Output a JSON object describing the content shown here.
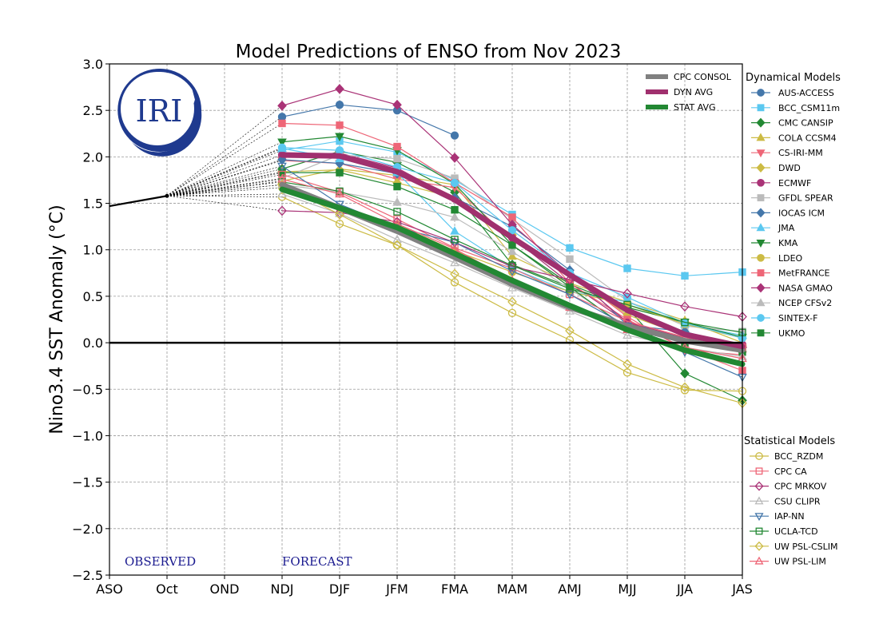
{
  "chart_data": {
    "type": "line",
    "title": "Model Predictions of ENSO from Nov 2023",
    "xlabel": "",
    "ylabel": "Nino3.4 SST Anomaly (°C)",
    "ylim": [
      -2.5,
      3.0
    ],
    "yticks": [
      "−2.5",
      "−2.0",
      "−1.5",
      "−1.0",
      "−0.5",
      "0.0",
      "0.5",
      "1.0",
      "1.5",
      "2.0",
      "2.5",
      "3.0"
    ],
    "categories": [
      "ASO",
      "Oct",
      "OND",
      "NDJ",
      "DJF",
      "JFM",
      "FMA",
      "MAM",
      "AMJ",
      "MJJ",
      "JJA",
      "JAS"
    ],
    "grid": true,
    "annotations": {
      "observed": "OBSERVED",
      "forecast": "FORECAST"
    },
    "logo_text": "IRI",
    "observed": [
      1.47,
      1.58
    ],
    "legend_dyn_title": "Dynamical Models",
    "legend_stat_title": "Statistical Models",
    "avg_series": [
      {
        "name": "CPC CONSOL",
        "color": "#808080",
        "values": [
          1.7,
          1.45,
          1.2,
          0.92,
          0.63,
          0.38,
          0.18,
          0.02,
          -0.08
        ]
      },
      {
        "name": "DYN AVG",
        "color": "#a0306e",
        "values": [
          2.02,
          2.01,
          1.84,
          1.54,
          1.13,
          0.73,
          0.35,
          0.09,
          -0.04
        ]
      },
      {
        "name": "STAT AVG",
        "color": "#228833",
        "values": [
          1.65,
          1.45,
          1.24,
          0.96,
          0.67,
          0.4,
          0.14,
          -0.08,
          -0.23
        ]
      }
    ],
    "dynamical": [
      {
        "name": "AUS-ACCESS",
        "color": "#4477aa",
        "marker": "circle",
        "values": [
          2.43,
          2.56,
          2.5,
          2.23,
          null,
          null,
          null,
          null,
          null
        ]
      },
      {
        "name": "BCC_CSM11m",
        "color": "#5bc8f0",
        "marker": "square",
        "values": [
          2.07,
          2.17,
          2.05,
          1.75,
          1.38,
          1.02,
          0.8,
          0.72,
          0.76
        ]
      },
      {
        "name": "CMC CANSIP",
        "color": "#228833",
        "marker": "diamond",
        "values": [
          1.87,
          2.06,
          1.94,
          1.62,
          0.84,
          0.6,
          0.38,
          -0.33,
          -0.62
        ]
      },
      {
        "name": "COLA CCSM4",
        "color": "#ccbb44",
        "marker": "triangle-up",
        "values": [
          1.74,
          1.87,
          1.8,
          1.7,
          0.93,
          0.64,
          0.44,
          0.24,
          0.0
        ]
      },
      {
        "name": "CS-IRI-MM",
        "color": "#ee6677",
        "marker": "triangle-down",
        "values": [
          1.96,
          1.93,
          1.76,
          1.67,
          1.1,
          0.75,
          0.28,
          -0.08,
          -0.13
        ]
      },
      {
        "name": "DWD",
        "color": "#ccbb44",
        "marker": "diamond",
        "values": [
          1.84,
          1.86,
          1.72,
          1.56,
          1.16,
          0.74,
          0.3,
          0.08,
          -0.05
        ]
      },
      {
        "name": "ECMWF",
        "color": "#aa3377",
        "marker": "circle",
        "values": [
          2.02,
          2.04,
          1.88,
          1.55,
          1.13,
          0.64,
          0.22,
          0.05,
          -0.02
        ]
      },
      {
        "name": "GFDL SPEAR",
        "color": "#bbbbbb",
        "marker": "square",
        "values": [
          1.77,
          2.02,
          1.98,
          1.77,
          1.33,
          0.9,
          0.45,
          0.18,
          0.12
        ]
      },
      {
        "name": "IOCAS ICM",
        "color": "#4477aa",
        "marker": "diamond",
        "values": [
          1.97,
          1.93,
          1.82,
          1.56,
          1.25,
          0.78,
          0.19,
          0.12,
          -0.05
        ]
      },
      {
        "name": "JMA",
        "color": "#5bc8f0",
        "marker": "triangle-up",
        "values": [
          2.09,
          1.98,
          1.83,
          1.2,
          0.8,
          0.55,
          0.44,
          0.2,
          0.08
        ]
      },
      {
        "name": "KMA",
        "color": "#228833",
        "marker": "triangle-down",
        "values": [
          2.16,
          2.22,
          2.07,
          1.71,
          1.05,
          0.63,
          0.38,
          0.22,
          0.06
        ]
      },
      {
        "name": "LDEO",
        "color": "#ccbb44",
        "marker": "circle",
        "values": [
          1.67,
          1.45,
          1.27,
          0.99,
          0.76,
          0.55,
          0.41,
          0.2,
          0.05
        ]
      },
      {
        "name": "MetFRANCE",
        "color": "#ee6677",
        "marker": "square",
        "values": [
          2.36,
          2.34,
          2.11,
          1.72,
          1.35,
          0.64,
          0.25,
          -0.06,
          -0.3
        ]
      },
      {
        "name": "NASA GMAO",
        "color": "#aa3377",
        "marker": "diamond",
        "values": [
          2.55,
          2.73,
          2.56,
          1.99,
          1.27,
          0.74,
          0.22,
          0.02,
          -0.05
        ]
      },
      {
        "name": "NCEP CFSv2",
        "color": "#bbbbbb",
        "marker": "triangle-up",
        "values": [
          1.7,
          1.62,
          1.51,
          1.35,
          0.98,
          0.58,
          0.17,
          0.04,
          -0.06
        ]
      },
      {
        "name": "SINTEX-F",
        "color": "#5bc8f0",
        "marker": "circle",
        "values": [
          2.1,
          2.07,
          1.89,
          1.72,
          1.21,
          0.75,
          0.49,
          0.21,
          0.05
        ]
      },
      {
        "name": "UKMO",
        "color": "#228833",
        "marker": "square",
        "values": [
          1.83,
          1.83,
          1.68,
          1.43,
          1.05,
          0.6,
          0.15,
          0.0,
          -0.1
        ]
      }
    ],
    "statistical": [
      {
        "name": "BCC_RZDM",
        "color": "#ccbb44",
        "marker": "circle",
        "values": [
          1.57,
          1.28,
          1.05,
          0.65,
          0.32,
          0.03,
          -0.32,
          -0.51,
          -0.52
        ]
      },
      {
        "name": "CPC CA",
        "color": "#ee6677",
        "marker": "square",
        "values": [
          1.81,
          1.62,
          1.33,
          1.02,
          0.8,
          0.52,
          0.23,
          0.06,
          -0.05
        ]
      },
      {
        "name": "CPC MRKOV",
        "color": "#aa3377",
        "marker": "diamond",
        "values": [
          1.42,
          1.4,
          1.3,
          1.08,
          0.82,
          0.68,
          0.53,
          0.39,
          0.28
        ]
      },
      {
        "name": "CSU CLIPR",
        "color": "#bbbbbb",
        "marker": "triangle-up",
        "values": [
          1.6,
          1.39,
          1.11,
          0.86,
          0.59,
          0.34,
          0.08,
          -0.05,
          -0.15
        ]
      },
      {
        "name": "IAP-NN",
        "color": "#4477aa",
        "marker": "triangle-down",
        "values": [
          1.9,
          1.49,
          1.24,
          1.08,
          0.77,
          0.52,
          0.18,
          -0.1,
          -0.37
        ]
      },
      {
        "name": "UCLA-TCD",
        "color": "#228833",
        "marker": "square",
        "values": [
          1.73,
          1.63,
          1.41,
          1.11,
          0.83,
          0.58,
          0.41,
          0.22,
          0.11
        ]
      },
      {
        "name": "UW PSL-CSLIM",
        "color": "#ccbb44",
        "marker": "diamond",
        "values": [
          1.7,
          1.38,
          1.05,
          0.74,
          0.44,
          0.13,
          -0.23,
          -0.48,
          -0.65
        ]
      },
      {
        "name": "UW PSL-LIM",
        "color": "#ee6677",
        "marker": "triangle-up",
        "values": [
          1.76,
          1.6,
          1.28,
          1.01,
          0.67,
          0.38,
          0.14,
          -0.05,
          -0.17
        ]
      }
    ]
  }
}
